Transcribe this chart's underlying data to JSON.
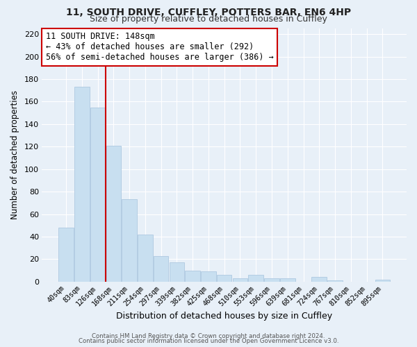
{
  "title1": "11, SOUTH DRIVE, CUFFLEY, POTTERS BAR, EN6 4HP",
  "title2": "Size of property relative to detached houses in Cuffley",
  "xlabel": "Distribution of detached houses by size in Cuffley",
  "ylabel": "Number of detached properties",
  "bar_color": "#c8dff0",
  "bar_edge_color": "#aec8e0",
  "background_color": "#e8f0f8",
  "grid_color": "#ffffff",
  "bins": [
    "40sqm",
    "83sqm",
    "126sqm",
    "168sqm",
    "211sqm",
    "254sqm",
    "297sqm",
    "339sqm",
    "382sqm",
    "425sqm",
    "468sqm",
    "510sqm",
    "553sqm",
    "596sqm",
    "639sqm",
    "681sqm",
    "724sqm",
    "767sqm",
    "810sqm",
    "852sqm",
    "895sqm"
  ],
  "values": [
    48,
    173,
    155,
    121,
    73,
    42,
    23,
    17,
    10,
    9,
    6,
    3,
    6,
    3,
    3,
    0,
    4,
    1,
    0,
    0,
    2
  ],
  "vline_color": "#cc0000",
  "annotation_title": "11 SOUTH DRIVE: 148sqm",
  "annotation_line1": "← 43% of detached houses are smaller (292)",
  "annotation_line2": "56% of semi-detached houses are larger (386) →",
  "annotation_box_color": "#ffffff",
  "annotation_box_edge": "#cc0000",
  "ylim": [
    0,
    225
  ],
  "yticks": [
    0,
    20,
    40,
    60,
    80,
    100,
    120,
    140,
    160,
    180,
    200,
    220
  ],
  "footer1": "Contains HM Land Registry data © Crown copyright and database right 2024.",
  "footer2": "Contains public sector information licensed under the Open Government Licence v3.0."
}
